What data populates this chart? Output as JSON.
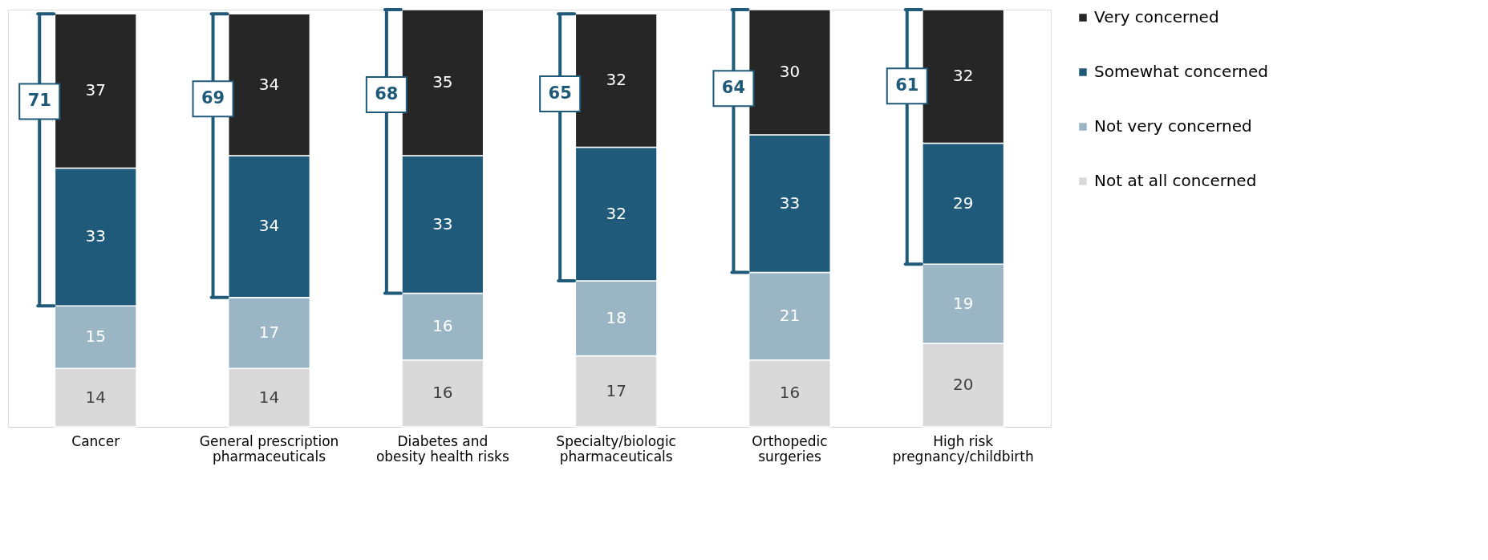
{
  "chart_data": {
    "type": "bar",
    "stacked": true,
    "data_labels": true,
    "legend": "right",
    "grid": false,
    "categories": [
      "Cancer",
      "General prescription pharmaceuticals",
      "Diabetes and obesity health risks",
      "Specialty/biologic pharmaceuticals",
      "Orthopedic surgeries",
      "High risk pregnancy/childbirth"
    ],
    "series": [
      {
        "name": "Not at all concerned",
        "color": "#d9d9d9",
        "values": [
          14,
          14,
          16,
          17,
          16,
          20
        ]
      },
      {
        "name": "Not very concerned",
        "color": "#9ab5c4",
        "values": [
          15,
          17,
          16,
          18,
          21,
          19
        ]
      },
      {
        "name": "Somewhat concerned",
        "color": "#1f5a7a",
        "values": [
          33,
          34,
          33,
          32,
          33,
          29
        ]
      },
      {
        "name": "Very concerned",
        "color": "#262626",
        "values": [
          37,
          34,
          35,
          32,
          30,
          32
        ]
      }
    ],
    "annotations": [
      "71",
      "69",
      "68",
      "65",
      "64",
      "61"
    ]
  }
}
